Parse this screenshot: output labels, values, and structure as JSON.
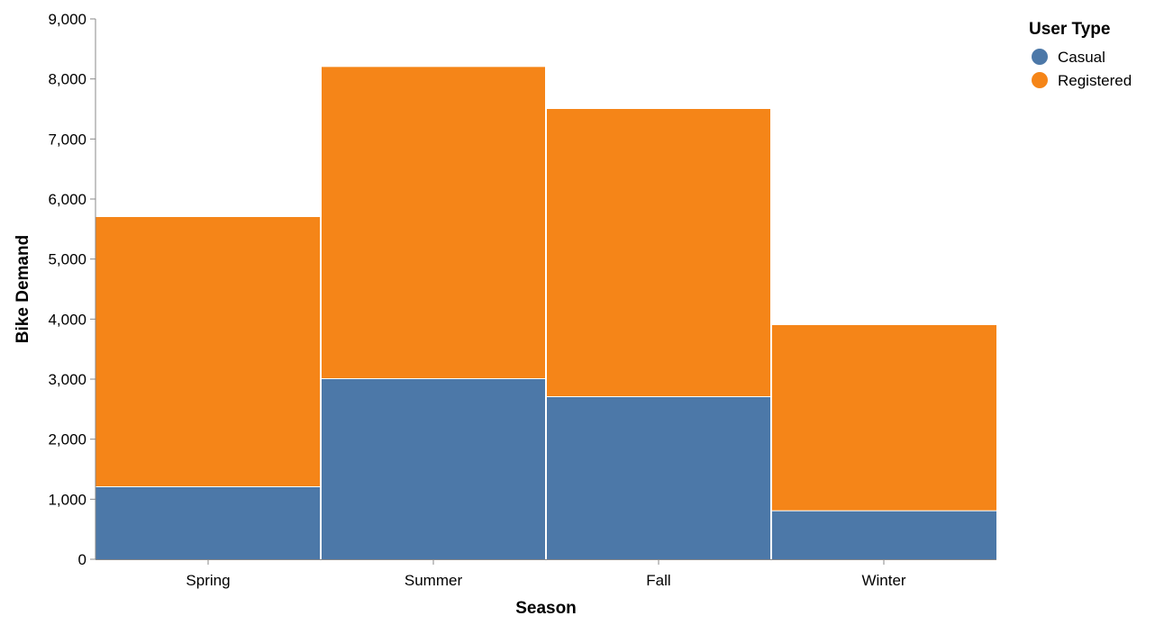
{
  "chart_data": {
    "type": "bar",
    "stacked": true,
    "categories": [
      "Spring",
      "Summer",
      "Fall",
      "Winter"
    ],
    "series": [
      {
        "name": "Casual",
        "values": [
          1200,
          3000,
          2700,
          800
        ],
        "color": "#4c78a8"
      },
      {
        "name": "Registered",
        "values": [
          4500,
          5200,
          4800,
          3100
        ],
        "color": "#f58518"
      }
    ],
    "xlabel": "Season",
    "ylabel": "Bike Demand",
    "ylim": [
      0,
      9000
    ],
    "yticks": [
      0,
      1000,
      2000,
      3000,
      4000,
      5000,
      6000,
      7000,
      8000,
      9000
    ],
    "ytick_labels": [
      "0",
      "1,000",
      "2,000",
      "3,000",
      "4,000",
      "5,000",
      "6,000",
      "7,000",
      "8,000",
      "9,000"
    ],
    "legend": {
      "title": "User Type",
      "position": "top-right"
    },
    "grid": false
  }
}
